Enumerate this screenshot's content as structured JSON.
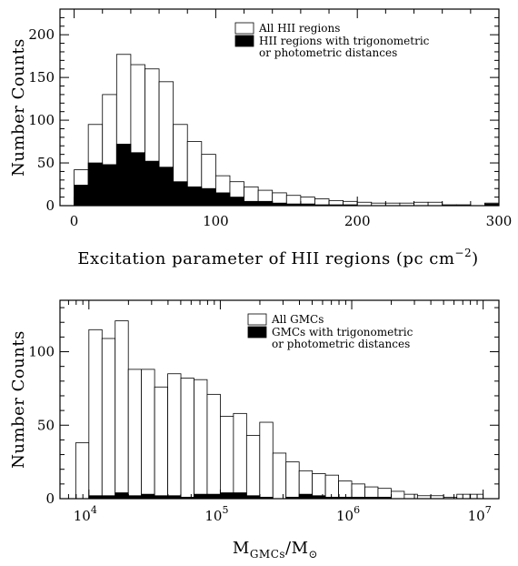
{
  "chart_data": [
    {
      "type": "bar",
      "bin_width": 10,
      "bin_starts": [
        0,
        10,
        20,
        30,
        40,
        50,
        60,
        70,
        80,
        90,
        100,
        110,
        120,
        130,
        140,
        150,
        160,
        170,
        180,
        190,
        200,
        210,
        220,
        230,
        240,
        250,
        260,
        270,
        280,
        290
      ],
      "series": [
        {
          "name": "All HII regions",
          "color": "#ffffff",
          "values": [
            42,
            95,
            130,
            177,
            165,
            160,
            145,
            95,
            75,
            60,
            35,
            28,
            22,
            18,
            15,
            12,
            10,
            8,
            6,
            5,
            4,
            3,
            3,
            3,
            4,
            4,
            1,
            1,
            0,
            3
          ]
        },
        {
          "name": "HII regions with trigonometric or photometric distances",
          "color": "#000000",
          "values": [
            24,
            50,
            48,
            72,
            62,
            52,
            45,
            28,
            22,
            20,
            15,
            10,
            5,
            5,
            3,
            2,
            2,
            1,
            1,
            1,
            0,
            0,
            0,
            0,
            0,
            0,
            0,
            0,
            0,
            2
          ]
        }
      ],
      "legend": {
        "position": "top-right",
        "entries": [
          {
            "lines": [
              "All HII regions"
            ],
            "fill": "#ffffff"
          },
          {
            "lines": [
              "HII regions with trigonometric",
              "or photometric distances"
            ],
            "fill": "#000000"
          }
        ]
      },
      "xlabel": "Excitation parameter of HII regions (pc cm",
      "xlabel_sup": "−2",
      "xlabel_close": ")",
      "ylabel": "Number Counts",
      "xlim": [
        -10,
        300
      ],
      "ylim": [
        0,
        230
      ],
      "xticks": [
        {
          "v": 0,
          "label": "0"
        },
        {
          "v": 100,
          "label": "100"
        },
        {
          "v": 200,
          "label": "200"
        },
        {
          "v": 300,
          "label": "300"
        }
      ],
      "yticks": [
        {
          "v": 0,
          "label": "0"
        },
        {
          "v": 50,
          "label": "50"
        },
        {
          "v": 100,
          "label": "100"
        },
        {
          "v": 150,
          "label": "150"
        },
        {
          "v": 200,
          "label": "200"
        }
      ],
      "x_minor_step": 20,
      "y_minor_step": 10,
      "grid": false
    },
    {
      "type": "bar",
      "x_scale": "log",
      "bin_width_log": 0.1,
      "bin_starts_log": [
        3.9,
        4.0,
        4.1,
        4.2,
        4.3,
        4.4,
        4.5,
        4.6,
        4.7,
        4.8,
        4.9,
        5.0,
        5.1,
        5.2,
        5.3,
        5.4,
        5.5,
        5.6,
        5.7,
        5.8,
        5.9,
        6.0,
        6.1,
        6.2,
        6.3,
        6.4,
        6.5,
        6.6,
        6.7,
        6.8,
        6.9
      ],
      "series": [
        {
          "name": "All GMCs",
          "color": "#ffffff",
          "values": [
            38,
            115,
            109,
            121,
            88,
            88,
            76,
            85,
            82,
            81,
            71,
            56,
            58,
            43,
            52,
            31,
            25,
            19,
            17,
            16,
            12,
            10,
            8,
            7,
            5,
            3,
            2,
            2,
            1,
            3,
            3
          ]
        },
        {
          "name": "GMCs with trigonometric or photometric distances",
          "color": "#000000",
          "values": [
            0,
            2,
            2,
            4,
            2,
            3,
            2,
            2,
            1,
            3,
            3,
            4,
            4,
            2,
            1,
            0,
            1,
            3,
            2,
            1,
            1,
            1,
            1,
            1,
            0,
            0,
            0,
            0,
            0,
            0,
            0
          ]
        }
      ],
      "legend": {
        "position": "top-right",
        "entries": [
          {
            "lines": [
              "All GMCs"
            ],
            "fill": "#ffffff"
          },
          {
            "lines": [
              "GMCs with trigonometric",
              "or photometric distances"
            ],
            "fill": "#000000"
          }
        ]
      },
      "xlabel_main": "M",
      "xlabel_sub1": "GMCs",
      "xlabel_mid": "/M",
      "xlabel_sub2": "⊙",
      "ylabel": "Number Counts",
      "xlim_log": [
        3.78,
        7.12
      ],
      "ylim": [
        0,
        135
      ],
      "xticks": [
        {
          "v": 4,
          "base": "10",
          "exp": "4"
        },
        {
          "v": 5,
          "base": "10",
          "exp": "5"
        },
        {
          "v": 6,
          "base": "10",
          "exp": "6"
        },
        {
          "v": 7,
          "base": "10",
          "exp": "7"
        }
      ],
      "yticks": [
        {
          "v": 0,
          "label": "0"
        },
        {
          "v": 50,
          "label": "50"
        },
        {
          "v": 100,
          "label": "100"
        }
      ],
      "y_minor_step": 10,
      "grid": false
    }
  ]
}
